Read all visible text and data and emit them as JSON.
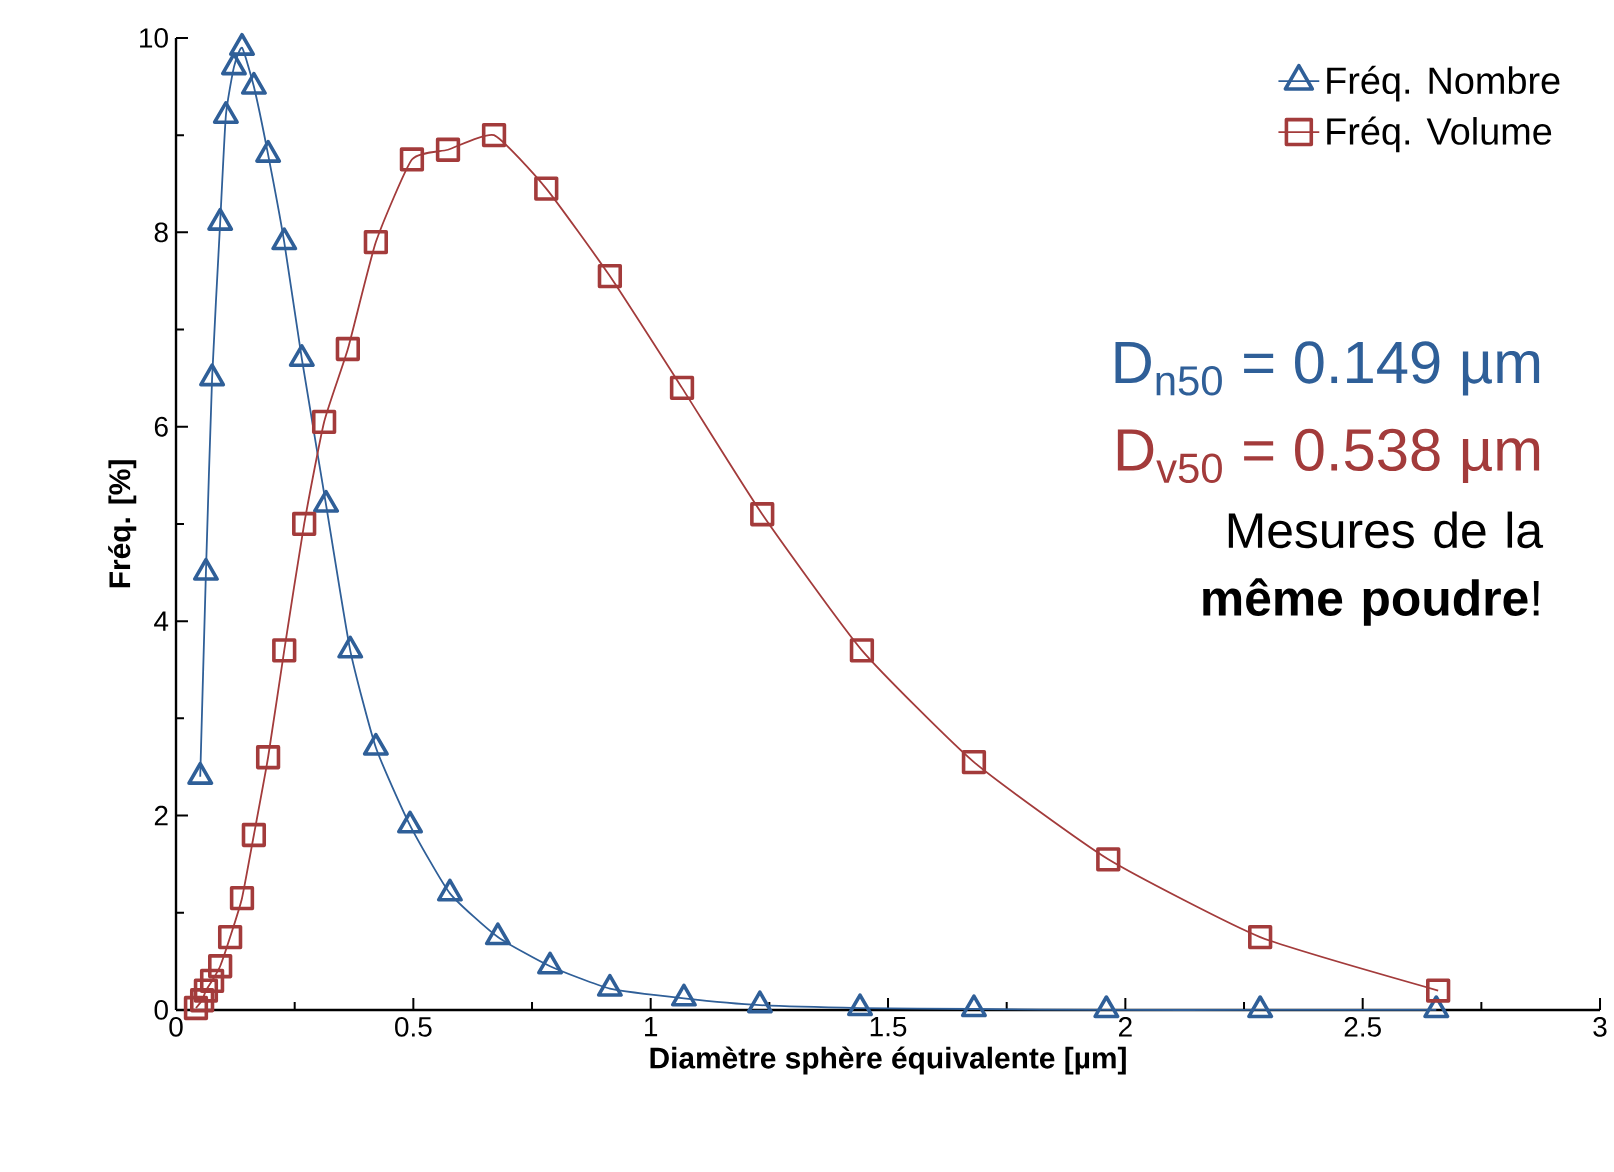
{
  "chart_data": {
    "type": "line",
    "xlabel": "Diamètre sphère équivalente [µm]",
    "ylabel": "Fréq. [%]",
    "xlim": [
      0,
      3
    ],
    "ylim": [
      0,
      10
    ],
    "xticks": [
      0,
      0.5,
      1,
      1.5,
      2,
      2.5,
      3
    ],
    "yticks": [
      0,
      2,
      4,
      6,
      8,
      10
    ],
    "legend": "top right",
    "grid": false,
    "series": [
      {
        "name": "Fréq. Nombre",
        "color": "#2f5f98",
        "marker": "triangle",
        "x": [
          0.051,
          0.063,
          0.076,
          0.093,
          0.105,
          0.122,
          0.139,
          0.164,
          0.194,
          0.228,
          0.265,
          0.316,
          0.367,
          0.421,
          0.493,
          0.577,
          0.678,
          0.788,
          0.914,
          1.07,
          1.23,
          1.441,
          1.681,
          1.96,
          2.284,
          2.655
        ],
        "values": [
          2.4,
          4.5,
          6.5,
          8.1,
          9.2,
          9.7,
          9.9,
          9.5,
          8.8,
          7.9,
          6.7,
          5.2,
          3.7,
          2.7,
          1.9,
          1.2,
          0.75,
          0.45,
          0.22,
          0.12,
          0.05,
          0.02,
          0.01,
          0,
          0,
          0
        ]
      },
      {
        "name": "Fréq. Volume",
        "color": "#a33b3b",
        "marker": "square",
        "x": [
          0.042,
          0.046,
          0.055,
          0.063,
          0.076,
          0.093,
          0.114,
          0.139,
          0.164,
          0.194,
          0.228,
          0.27,
          0.312,
          0.362,
          0.421,
          0.497,
          0.573,
          0.67,
          0.78,
          0.914,
          1.066,
          1.235,
          1.445,
          1.681,
          1.964,
          2.284,
          2.659
        ],
        "values": [
          0.02,
          null,
          0.1,
          0.2,
          0.3,
          0.45,
          0.75,
          1.15,
          1.8,
          2.6,
          3.7,
          5.0,
          6.05,
          6.8,
          7.9,
          8.75,
          8.85,
          9.0,
          8.45,
          7.55,
          6.4,
          5.1,
          3.7,
          2.55,
          1.55,
          0.75,
          0.2
        ]
      }
    ],
    "annotations": [
      "D$_{n50}$ = 0.149 µm",
      "D$_{v50}$ = 0.538 µm",
      "Mesures de la **même poudre**!"
    ]
  }
}
